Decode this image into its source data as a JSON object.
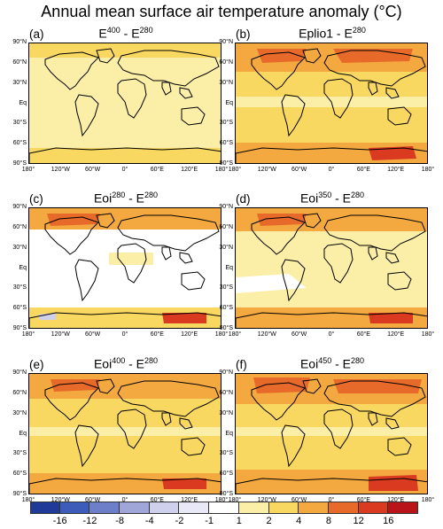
{
  "figure": {
    "title": "Annual mean surface air temperature anomaly (°C)"
  },
  "panels": [
    {
      "label": "(a)",
      "base": "E",
      "sup": "400",
      "mid": " - E",
      "sup2": "280"
    },
    {
      "label": "(b)",
      "base": "Eplio1 - E",
      "sup": "280",
      "mid": "",
      "sup2": ""
    },
    {
      "label": "(c)",
      "base": "Eoi",
      "sup": "280",
      "mid": " - E",
      "sup2": "280"
    },
    {
      "label": "(d)",
      "base": "Eoi",
      "sup": "350",
      "mid": " - E",
      "sup2": "280"
    },
    {
      "label": "(e)",
      "base": "Eoi",
      "sup": "400",
      "mid": " - E",
      "sup2": "280"
    },
    {
      "label": "(f)",
      "base": "Eoi",
      "sup": "450",
      "mid": " - E",
      "sup2": "280"
    }
  ],
  "lat_labels": [
    "90°N",
    "60°N",
    "30°N",
    "Eq",
    "30°S",
    "60°S",
    "90°S"
  ],
  "lon_labels": [
    "180°",
    "120°W",
    "60°W",
    "0°",
    "60°E",
    "120°E",
    "180°"
  ],
  "colorbar": {
    "ticks": [
      "-16",
      "-12",
      "-8",
      "-4",
      "-2",
      "-1",
      "1",
      "2",
      "4",
      "8",
      "12",
      "16"
    ],
    "colors": [
      "#1f3a99",
      "#3d5bb8",
      "#6c7fc8",
      "#a0a6d8",
      "#cfd0ec",
      "#e8e8f6",
      "#ffffff",
      "#fbeea6",
      "#f9d862",
      "#f3a93f",
      "#e86a2a",
      "#d93a20",
      "#b8141a"
    ]
  },
  "fill_colors": {
    "weak": "#fbeea6",
    "mid": "#f9d862",
    "strong": "#f3a93f",
    "very_strong": "#e86a2a",
    "extreme": "#d93a20",
    "neutral": "#ffffff",
    "cool": "#cfd0ec"
  }
}
